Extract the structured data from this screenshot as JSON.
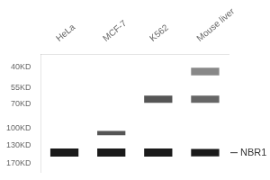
{
  "chart_data": {
    "type": "blot",
    "categories": [
      "HeLa",
      "MCF-7",
      "K562",
      "Mouse liver"
    ],
    "bands": [
      {
        "lane": "HeLa",
        "kd": 145,
        "height": 18,
        "color": "#1a1a1a"
      },
      {
        "lane": "MCF-7",
        "kd": 145,
        "height": 18,
        "color": "#1a1a1a"
      },
      {
        "lane": "K562",
        "kd": 145,
        "height": 18,
        "color": "#1a1a1a"
      },
      {
        "lane": "Mouse liver",
        "kd": 145,
        "height": 16,
        "color": "#1a1a1a"
      },
      {
        "lane": "MCF-7",
        "kd": 108,
        "height": 7,
        "color": "#555555"
      },
      {
        "lane": "K562",
        "kd": 65,
        "height": 7,
        "color": "#555555"
      },
      {
        "lane": "Mouse liver",
        "kd": 65,
        "height": 7,
        "color": "#666666"
      },
      {
        "lane": "Mouse liver",
        "kd": 43,
        "height": 5,
        "color": "#888888"
      }
    ],
    "log": "y",
    "ylim": [
      195,
      33
    ],
    "yticks": [
      {
        "value": 170,
        "label": "170KD"
      },
      {
        "value": 130,
        "label": "130KD"
      },
      {
        "value": 100,
        "label": "100KD"
      },
      {
        "value": 70,
        "label": "70KD"
      },
      {
        "value": 55,
        "label": "55KD"
      },
      {
        "value": 40,
        "label": "40KD"
      }
    ],
    "annotations": [
      {
        "text": "NBR1",
        "y": 145
      }
    ],
    "grid": false
  }
}
